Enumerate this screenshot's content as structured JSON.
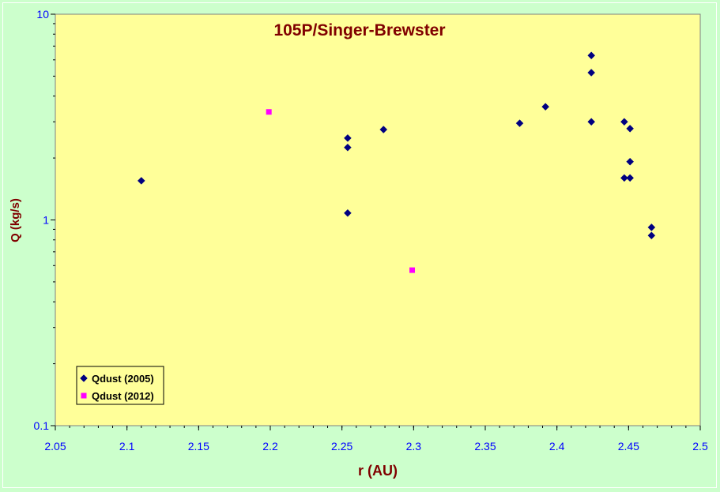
{
  "chart_data": {
    "type": "scatter",
    "title": "105P/Singer-Brewster",
    "xlabel": "r (AU)",
    "ylabel": "Q (kg/s)",
    "xlim": [
      2.05,
      2.5
    ],
    "ylim": [
      0.1,
      10
    ],
    "y_scale": "log",
    "x_ticks": [
      "2.05",
      "2.1",
      "2.15",
      "2.2",
      "2.25",
      "2.3",
      "2.35",
      "2.4",
      "2.45",
      "2.5"
    ],
    "y_ticks": [
      "0.1",
      "1",
      "10"
    ],
    "legend_position": "bottom-left",
    "plot_background": "#ffff99",
    "figure_background": "#ccffcc",
    "series": [
      {
        "name": "Qdust (2005)",
        "marker": "diamond",
        "color": "#000080",
        "points": [
          [
            2.11,
            1.55
          ],
          [
            2.254,
            2.5
          ],
          [
            2.254,
            2.25
          ],
          [
            2.254,
            1.08
          ],
          [
            2.279,
            2.75
          ],
          [
            2.374,
            2.95
          ],
          [
            2.392,
            3.55
          ],
          [
            2.424,
            6.3
          ],
          [
            2.424,
            5.2
          ],
          [
            2.424,
            3.0
          ],
          [
            2.447,
            3.0
          ],
          [
            2.451,
            2.78
          ],
          [
            2.451,
            1.92
          ],
          [
            2.447,
            1.6
          ],
          [
            2.451,
            1.6
          ],
          [
            2.466,
            0.92
          ],
          [
            2.466,
            0.84
          ]
        ]
      },
      {
        "name": "Qdust (2012)",
        "marker": "square",
        "color": "#ff00ff",
        "points": [
          [
            2.199,
            3.35
          ],
          [
            2.299,
            0.57
          ]
        ]
      }
    ]
  }
}
